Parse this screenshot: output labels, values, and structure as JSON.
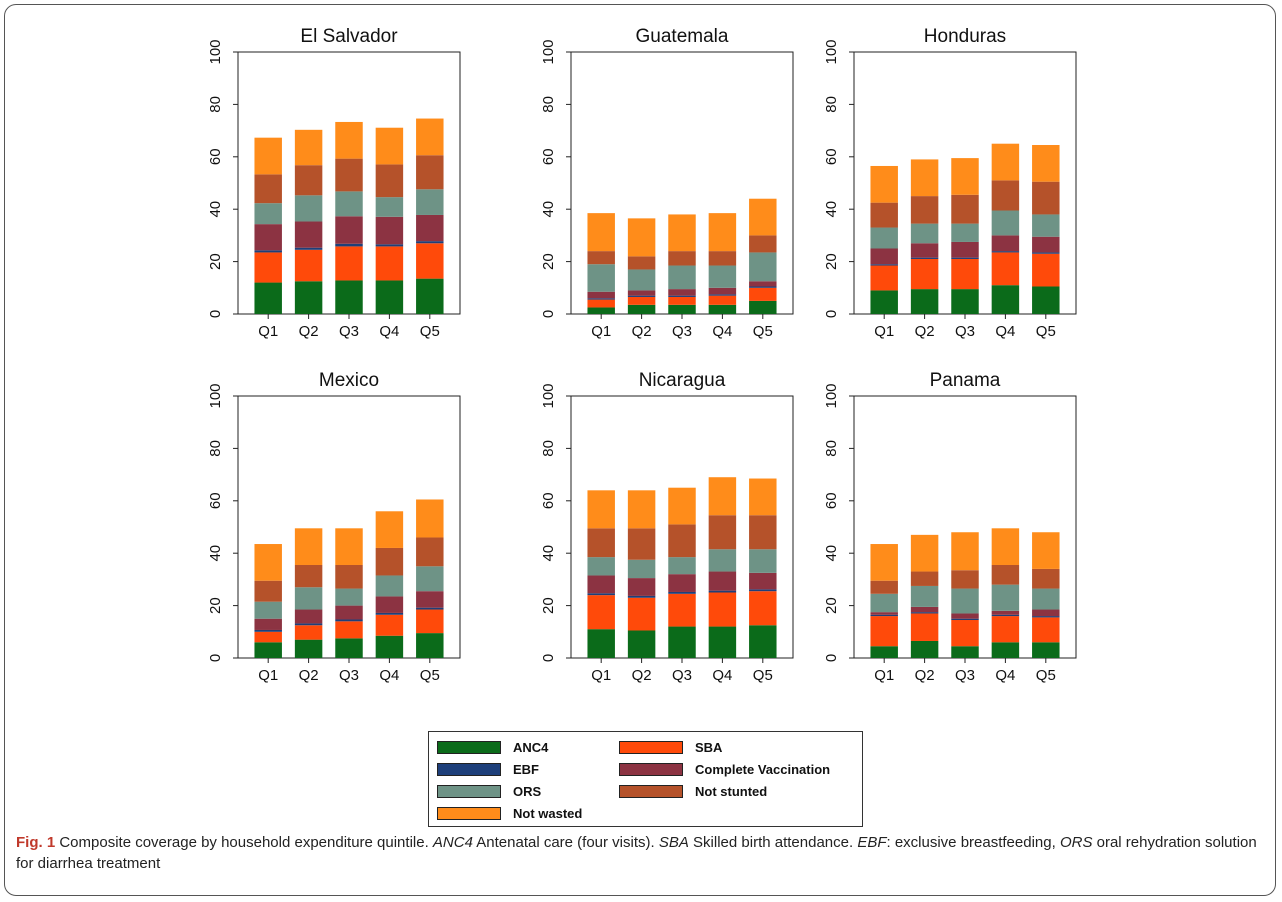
{
  "colors": {
    "ANC4": "#0b6b1a",
    "SBA": "#ff4a0a",
    "EBF": "#1e3f7a",
    "Complete Vaccination": "#8c3342",
    "ORS": "#6e9386",
    "Not stunted": "#b5522a",
    "Not wasted": "#ff8c1a"
  },
  "chart_data": [
    {
      "type": "bar",
      "stacked": true,
      "title": "El Salvador",
      "categories": [
        "Q1",
        "Q2",
        "Q3",
        "Q4",
        "Q5"
      ],
      "ylim": [
        0,
        100
      ],
      "yticks": [
        0,
        20,
        40,
        60,
        80,
        100
      ],
      "series": [
        {
          "name": "ANC4",
          "values": [
            12,
            12.5,
            12.8,
            12.8,
            13.5
          ]
        },
        {
          "name": "SBA",
          "values": [
            11.5,
            12,
            13,
            13,
            13.5
          ]
        },
        {
          "name": "EBF",
          "values": [
            0.8,
            0.8,
            1,
            0.8,
            0.8
          ]
        },
        {
          "name": "Complete Vaccination",
          "values": [
            10,
            10,
            10.5,
            10.5,
            10
          ]
        },
        {
          "name": "ORS",
          "values": [
            8,
            10,
            9.5,
            7.5,
            9.8
          ]
        },
        {
          "name": "Not stunted",
          "values": [
            11,
            11.5,
            12.5,
            12.5,
            13
          ]
        },
        {
          "name": "Not wasted",
          "values": [
            14,
            13.5,
            14,
            14,
            14
          ]
        }
      ]
    },
    {
      "type": "bar",
      "stacked": true,
      "title": "Guatemala",
      "categories": [
        "Q1",
        "Q2",
        "Q3",
        "Q4",
        "Q5"
      ],
      "ylim": [
        0,
        100
      ],
      "yticks": [
        0,
        20,
        40,
        60,
        80,
        100
      ],
      "series": [
        {
          "name": "ANC4",
          "values": [
            2.5,
            3.5,
            3.5,
            3.5,
            5
          ]
        },
        {
          "name": "SBA",
          "values": [
            3,
            3,
            3,
            3.5,
            5
          ]
        },
        {
          "name": "EBF",
          "values": [
            0.5,
            0.5,
            0.5,
            0.5,
            0.5
          ]
        },
        {
          "name": "Complete Vaccination",
          "values": [
            2.5,
            2,
            2.5,
            2.5,
            2
          ]
        },
        {
          "name": "ORS",
          "values": [
            10.5,
            8,
            9,
            8.5,
            11
          ]
        },
        {
          "name": "Not stunted",
          "values": [
            5,
            5,
            5.5,
            5.5,
            6.5
          ]
        },
        {
          "name": "Not wasted",
          "values": [
            14.5,
            14.5,
            14,
            14.5,
            14
          ]
        }
      ]
    },
    {
      "type": "bar",
      "stacked": true,
      "title": "Honduras",
      "categories": [
        "Q1",
        "Q2",
        "Q3",
        "Q4",
        "Q5"
      ],
      "ylim": [
        0,
        100
      ],
      "yticks": [
        0,
        20,
        40,
        60,
        80,
        100
      ],
      "series": [
        {
          "name": "ANC4",
          "values": [
            9,
            9.5,
            9.5,
            11,
            10.5
          ]
        },
        {
          "name": "SBA",
          "values": [
            9.5,
            11.5,
            11.5,
            12.5,
            12.5
          ]
        },
        {
          "name": "EBF",
          "values": [
            0.5,
            0.5,
            0.5,
            0.5,
            0.5
          ]
        },
        {
          "name": "Complete Vaccination",
          "values": [
            6,
            5.5,
            6,
            6,
            6
          ]
        },
        {
          "name": "ORS",
          "values": [
            8,
            7.5,
            7,
            9.5,
            8.5
          ]
        },
        {
          "name": "Not stunted",
          "values": [
            9.5,
            10.5,
            11,
            11.5,
            12.5
          ]
        },
        {
          "name": "Not wasted",
          "values": [
            14,
            14,
            14,
            14,
            14
          ]
        }
      ]
    },
    {
      "type": "bar",
      "stacked": true,
      "title": "Mexico",
      "categories": [
        "Q1",
        "Q2",
        "Q3",
        "Q4",
        "Q5"
      ],
      "ylim": [
        0,
        100
      ],
      "yticks": [
        0,
        20,
        40,
        60,
        80,
        100
      ],
      "series": [
        {
          "name": "ANC4",
          "values": [
            6,
            7,
            7.5,
            8.5,
            9.5
          ]
        },
        {
          "name": "SBA",
          "values": [
            4,
            5.5,
            6.5,
            8,
            9
          ]
        },
        {
          "name": "EBF",
          "values": [
            0.7,
            0.7,
            0.7,
            0.7,
            0.7
          ]
        },
        {
          "name": "Complete Vaccination",
          "values": [
            4.3,
            5.3,
            5.3,
            6.3,
            6.3
          ]
        },
        {
          "name": "ORS",
          "values": [
            6.5,
            8.5,
            6.5,
            8,
            9.5
          ]
        },
        {
          "name": "Not stunted",
          "values": [
            8,
            8.5,
            9,
            10.5,
            11
          ]
        },
        {
          "name": "Not wasted",
          "values": [
            14,
            14,
            14,
            14,
            14.5
          ]
        }
      ]
    },
    {
      "type": "bar",
      "stacked": true,
      "title": "Nicaragua",
      "categories": [
        "Q1",
        "Q2",
        "Q3",
        "Q4",
        "Q5"
      ],
      "ylim": [
        0,
        100
      ],
      "yticks": [
        0,
        20,
        40,
        60,
        80,
        100
      ],
      "series": [
        {
          "name": "ANC4",
          "values": [
            11,
            10.5,
            12,
            12,
            12.5
          ]
        },
        {
          "name": "SBA",
          "values": [
            13,
            12.5,
            12.5,
            13,
            13
          ]
        },
        {
          "name": "EBF",
          "values": [
            0.7,
            0.7,
            0.7,
            0.7,
            0.7
          ]
        },
        {
          "name": "Complete Vaccination",
          "values": [
            6.8,
            6.8,
            6.8,
            7.3,
            6.3
          ]
        },
        {
          "name": "ORS",
          "values": [
            7,
            7,
            6.5,
            8.5,
            9
          ]
        },
        {
          "name": "Not stunted",
          "values": [
            11,
            12,
            12.5,
            13,
            13
          ]
        },
        {
          "name": "Not wasted",
          "values": [
            14.5,
            14.5,
            14,
            14.5,
            14
          ]
        }
      ]
    },
    {
      "type": "bar",
      "stacked": true,
      "title": "Panama",
      "categories": [
        "Q1",
        "Q2",
        "Q3",
        "Q4",
        "Q5"
      ],
      "ylim": [
        0,
        100
      ],
      "yticks": [
        0,
        20,
        40,
        60,
        80,
        100
      ],
      "series": [
        {
          "name": "ANC4",
          "values": [
            4.5,
            6.5,
            4.5,
            6,
            6
          ]
        },
        {
          "name": "SBA",
          "values": [
            11.5,
            10.5,
            10,
            10,
            9.5
          ]
        },
        {
          "name": "EBF",
          "values": [
            0.5,
            0.5,
            0.5,
            0.5,
            0.5
          ]
        },
        {
          "name": "Complete Vaccination",
          "values": [
            1,
            2,
            2,
            1.5,
            2.5
          ]
        },
        {
          "name": "ORS",
          "values": [
            7,
            8,
            9.5,
            10,
            8
          ]
        },
        {
          "name": "Not stunted",
          "values": [
            5,
            5.5,
            7,
            7.5,
            7.5
          ]
        },
        {
          "name": "Not wasted",
          "values": [
            14,
            14,
            14.5,
            14,
            14
          ]
        }
      ]
    }
  ],
  "legend": {
    "items": [
      {
        "label": "ANC4",
        "color": "#0b6b1a"
      },
      {
        "label": "SBA",
        "color": "#ff4a0a"
      },
      {
        "label": "EBF",
        "color": "#1e3f7a"
      },
      {
        "label": "Complete Vaccination",
        "color": "#8c3342"
      },
      {
        "label": "ORS",
        "color": "#6e9386"
      },
      {
        "label": "Not stunted",
        "color": "#b5522a"
      },
      {
        "label": "Not wasted",
        "color": "#ff8c1a"
      }
    ]
  },
  "caption": {
    "fig_label": "Fig. 1",
    "parts": [
      {
        "text": " Composite coverage by household expenditure quintile. ",
        "italic": false
      },
      {
        "text": "ANC4",
        "italic": true
      },
      {
        "text": " Antenatal care (four visits). ",
        "italic": false
      },
      {
        "text": "SBA",
        "italic": true
      },
      {
        "text": " Skilled birth attendance. ",
        "italic": false
      },
      {
        "text": "EBF",
        "italic": true
      },
      {
        "text": ": exclusive breastfeeding, ",
        "italic": false
      },
      {
        "text": "ORS",
        "italic": true
      },
      {
        "text": " oral rehydration solution for diarrhea treatment",
        "italic": false
      }
    ]
  }
}
